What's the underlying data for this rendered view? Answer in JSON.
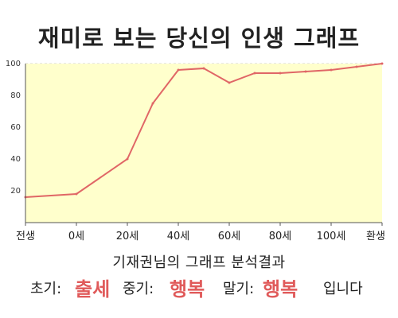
{
  "title": "재미로 보는 당신의 인생 그래프",
  "subtitle": "기재권님의 그래프 분석결과",
  "result": {
    "early_label": "초기:",
    "early_value": "출세",
    "mid_label": "중기:",
    "mid_value": "행복",
    "late_label": "말기:",
    "late_value": "행복",
    "ending": "입니다"
  },
  "colors": {
    "line": "#e06666",
    "fill": "#ffffcc",
    "highlight": "#e05a5a"
  },
  "chart_data": {
    "type": "area",
    "title": "재미로 보는 당신의 인생 그래프",
    "xlabel": "",
    "ylabel": "",
    "categories": [
      "전생",
      "0세",
      "20세",
      "40세",
      "60세",
      "80세",
      "100세",
      "환생"
    ],
    "x_ticks": [
      -20,
      0,
      20,
      40,
      60,
      80,
      100,
      120
    ],
    "x_tick_labels": [
      "전생",
      "0세",
      "20세",
      "40세",
      "60세",
      "80세",
      "100세",
      "환생"
    ],
    "y_ticks": [
      20,
      40,
      60,
      80,
      100
    ],
    "y_tick_labels": [
      "20",
      "40",
      "60",
      "80",
      "100"
    ],
    "xlim": [
      -20,
      120
    ],
    "ylim": [
      0,
      100
    ],
    "grid": "horizontal dashed",
    "series": [
      {
        "x": [
          -20,
          0,
          20,
          30,
          40,
          50,
          60,
          70,
          80,
          90,
          100,
          110,
          120
        ],
        "y": [
          16,
          18,
          40,
          75,
          96,
          97,
          88,
          94,
          94,
          95,
          96,
          98,
          100
        ]
      }
    ]
  }
}
